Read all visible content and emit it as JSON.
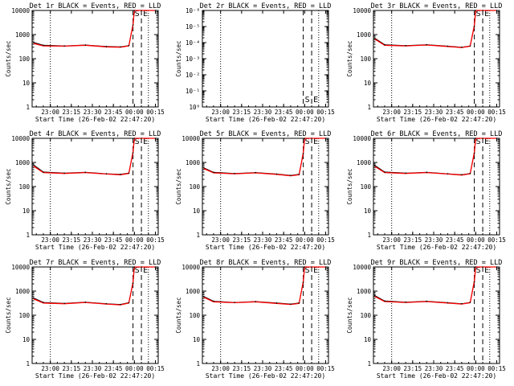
{
  "chart_data": [
    {
      "type": "line",
      "title": "Det 1r BLACK = Events, RED = LLD",
      "xlabel": "Start Time (26-Feb-02 22:47:20)",
      "ylabel": "Counts/sec",
      "yscale": "log",
      "yticks": [
        "1",
        "10",
        "100",
        "1000",
        "10000"
      ],
      "xticks": [
        "23:00",
        "23:15",
        "23:30",
        "23:45",
        "00:00",
        "00:15"
      ],
      "markers": [
        "S",
        "E"
      ],
      "grid": "off",
      "series": [
        {
          "name": "BLACK = Events",
          "color": "#000000"
        },
        {
          "name": "RED = LLD",
          "color": "#ff0000"
        }
      ],
      "x": [
        "22:48",
        "22:55",
        "23:10",
        "23:25",
        "23:40",
        "23:50",
        "23:56",
        "23:59",
        "00:00",
        "00:05",
        "00:15"
      ],
      "events": [
        480,
        360,
        340,
        370,
        320,
        310,
        350,
        2500,
        10000,
        10000,
        10000
      ],
      "lld": [
        430,
        340,
        330,
        360,
        310,
        300,
        340,
        2600,
        10000,
        10000,
        10000
      ]
    },
    {
      "type": "line",
      "title": "Det 2r BLACK = Events, RED = LLD",
      "xlabel": "Start Time (26-Feb-02 22:47:20)",
      "ylabel": "Counts/sec",
      "yscale": "log",
      "yticks": [
        "10⁰",
        "10⁻¹",
        "10⁻²",
        "10⁻³",
        "10⁻⁴",
        "10⁻⁵",
        "10⁻⁶"
      ],
      "xticks": [
        "23:00",
        "23:15",
        "23:30",
        "23:45",
        "00:00",
        "00:15"
      ],
      "markers": [
        "S",
        "E"
      ],
      "grid": "off",
      "series": [],
      "x": [],
      "events": [],
      "lld": []
    },
    {
      "type": "line",
      "title": "Det 3r BLACK = Events, RED = LLD",
      "xlabel": "Start Time (26-Feb-02 22:47:20)",
      "ylabel": "Counts/sec",
      "yscale": "log",
      "yticks": [
        "1",
        "10",
        "100",
        "1000",
        "10000"
      ],
      "xticks": [
        "23:00",
        "23:15",
        "23:30",
        "23:45",
        "00:00",
        "00:15"
      ],
      "markers": [
        "S",
        "E"
      ],
      "grid": "off",
      "series": [
        {
          "name": "BLACK = Events",
          "color": "#000000"
        },
        {
          "name": "RED = LLD",
          "color": "#ff0000"
        }
      ],
      "x": [
        "22:48",
        "22:55",
        "23:10",
        "23:25",
        "23:40",
        "23:50",
        "23:56",
        "23:59",
        "00:00",
        "00:05",
        "00:15"
      ],
      "events": [
        700,
        380,
        350,
        380,
        330,
        300,
        340,
        2200,
        10000,
        10000,
        10000
      ],
      "lld": [
        650,
        360,
        340,
        370,
        320,
        290,
        330,
        2400,
        10000,
        10000,
        10000
      ]
    },
    {
      "type": "line",
      "title": "Det 4r BLACK = Events, RED = LLD",
      "xlabel": "Start Time (26-Feb-02 22:47:20)",
      "ylabel": "Counts/sec",
      "yscale": "log",
      "yticks": [
        "1",
        "10",
        "100",
        "1000",
        "10000"
      ],
      "xticks": [
        "23:00",
        "23:15",
        "23:30",
        "23:45",
        "00:00",
        "00:15"
      ],
      "markers": [
        "S",
        "E"
      ],
      "grid": "off",
      "series": [
        {
          "name": "BLACK = Events",
          "color": "#000000"
        },
        {
          "name": "RED = LLD",
          "color": "#ff0000"
        }
      ],
      "x": [
        "22:48",
        "22:55",
        "23:10",
        "23:25",
        "23:40",
        "23:50",
        "23:56",
        "23:59",
        "00:00",
        "00:05",
        "00:15"
      ],
      "events": [
        800,
        400,
        360,
        390,
        340,
        320,
        360,
        2500,
        10000,
        10000,
        10000
      ],
      "lld": [
        700,
        380,
        350,
        380,
        330,
        310,
        350,
        2700,
        10000,
        10000,
        10000
      ]
    },
    {
      "type": "line",
      "title": "Det 5r BLACK = Events, RED = LLD",
      "xlabel": "Start Time (26-Feb-02 22:47:20)",
      "ylabel": "Counts/sec",
      "yscale": "log",
      "yticks": [
        "1",
        "10",
        "100",
        "1000",
        "10000"
      ],
      "xticks": [
        "23:00",
        "23:15",
        "23:30",
        "23:45",
        "00:00",
        "00:15"
      ],
      "markers": [
        "S",
        "E"
      ],
      "grid": "off",
      "series": [
        {
          "name": "BLACK = Events",
          "color": "#000000"
        },
        {
          "name": "RED = LLD",
          "color": "#ff0000"
        }
      ],
      "x": [
        "22:48",
        "22:55",
        "23:10",
        "23:25",
        "23:40",
        "23:50",
        "23:56",
        "23:59",
        "00:00",
        "00:05",
        "00:15"
      ],
      "events": [
        600,
        390,
        350,
        380,
        330,
        290,
        320,
        2300,
        10000,
        10000,
        10000
      ],
      "lld": [
        560,
        370,
        340,
        370,
        320,
        280,
        310,
        2500,
        10000,
        10000,
        10000
      ]
    },
    {
      "type": "line",
      "title": "Det 6r BLACK = Events, RED = LLD",
      "xlabel": "Start Time (26-Feb-02 22:47:20)",
      "ylabel": "Counts/sec",
      "yscale": "log",
      "yticks": [
        "1",
        "10",
        "100",
        "1000",
        "10000"
      ],
      "xticks": [
        "23:00",
        "23:15",
        "23:30",
        "23:45",
        "00:00",
        "00:15"
      ],
      "markers": [
        "S",
        "E"
      ],
      "grid": "off",
      "series": [
        {
          "name": "BLACK = Events",
          "color": "#000000"
        },
        {
          "name": "RED = LLD",
          "color": "#ff0000"
        }
      ],
      "x": [
        "22:48",
        "22:55",
        "23:10",
        "23:25",
        "23:40",
        "23:50",
        "23:56",
        "23:59",
        "00:00",
        "00:05",
        "00:15"
      ],
      "events": [
        750,
        400,
        360,
        390,
        340,
        310,
        350,
        2400,
        10000,
        10000,
        10000
      ],
      "lld": [
        680,
        380,
        350,
        380,
        330,
        300,
        340,
        2600,
        10000,
        10000,
        10000
      ]
    },
    {
      "type": "line",
      "title": "Det 7r BLACK = Events, RED = LLD",
      "xlabel": "Start Time (26-Feb-02 22:47:20)",
      "ylabel": "Counts/sec",
      "yscale": "log",
      "yticks": [
        "1",
        "10",
        "100",
        "1000",
        "10000"
      ],
      "xticks": [
        "23:00",
        "23:15",
        "23:30",
        "23:45",
        "00:00",
        "00:15"
      ],
      "markers": [
        "S",
        "E"
      ],
      "grid": "off",
      "series": [
        {
          "name": "BLACK = Events",
          "color": "#000000"
        },
        {
          "name": "RED = LLD",
          "color": "#ff0000"
        }
      ],
      "x": [
        "22:48",
        "22:55",
        "23:10",
        "23:25",
        "23:40",
        "23:50",
        "23:56",
        "23:59",
        "00:00",
        "00:05",
        "00:15"
      ],
      "events": [
        520,
        340,
        310,
        350,
        300,
        280,
        330,
        2100,
        10000,
        10000,
        10000
      ],
      "lld": [
        480,
        320,
        300,
        340,
        290,
        270,
        320,
        2300,
        10000,
        10000,
        10000
      ]
    },
    {
      "type": "line",
      "title": "Det 8r BLACK = Events, RED = LLD",
      "xlabel": "Start Time (26-Feb-02 22:47:20)",
      "ylabel": "Counts/sec",
      "yscale": "log",
      "yticks": [
        "1",
        "10",
        "100",
        "1000",
        "10000"
      ],
      "xticks": [
        "23:00",
        "23:15",
        "23:30",
        "23:45",
        "00:00",
        "00:15"
      ],
      "markers": [
        "S",
        "E"
      ],
      "grid": "off",
      "series": [
        {
          "name": "BLACK = Events",
          "color": "#000000"
        },
        {
          "name": "RED = LLD",
          "color": "#ff0000"
        }
      ],
      "x": [
        "22:48",
        "22:55",
        "23:10",
        "23:25",
        "23:40",
        "23:50",
        "23:56",
        "23:59",
        "00:00",
        "00:05",
        "00:15"
      ],
      "events": [
        600,
        380,
        340,
        370,
        320,
        290,
        320,
        2300,
        10000,
        10000,
        10000
      ],
      "lld": [
        560,
        360,
        330,
        360,
        310,
        280,
        310,
        2500,
        10000,
        10000,
        10000
      ]
    },
    {
      "type": "line",
      "title": "Det 9r BLACK = Events, RED = LLD",
      "xlabel": "Start Time (26-Feb-02 22:47:20)",
      "ylabel": "Counts/sec",
      "yscale": "log",
      "yticks": [
        "1",
        "10",
        "100",
        "1000",
        "10000"
      ],
      "xticks": [
        "23:00",
        "23:15",
        "23:30",
        "23:45",
        "00:00",
        "00:15"
      ],
      "markers": [
        "S",
        "E"
      ],
      "grid": "off",
      "series": [
        {
          "name": "BLACK = Events",
          "color": "#000000"
        },
        {
          "name": "RED = LLD",
          "color": "#ff0000"
        }
      ],
      "x": [
        "22:48",
        "22:55",
        "23:10",
        "23:25",
        "23:40",
        "23:50",
        "23:56",
        "23:59",
        "00:00",
        "00:05",
        "00:15"
      ],
      "events": [
        650,
        390,
        350,
        380,
        330,
        300,
        340,
        2400,
        10000,
        10000,
        10000
      ],
      "lld": [
        600,
        370,
        340,
        370,
        320,
        290,
        330,
        2600,
        10000,
        10000,
        10000
      ]
    }
  ]
}
